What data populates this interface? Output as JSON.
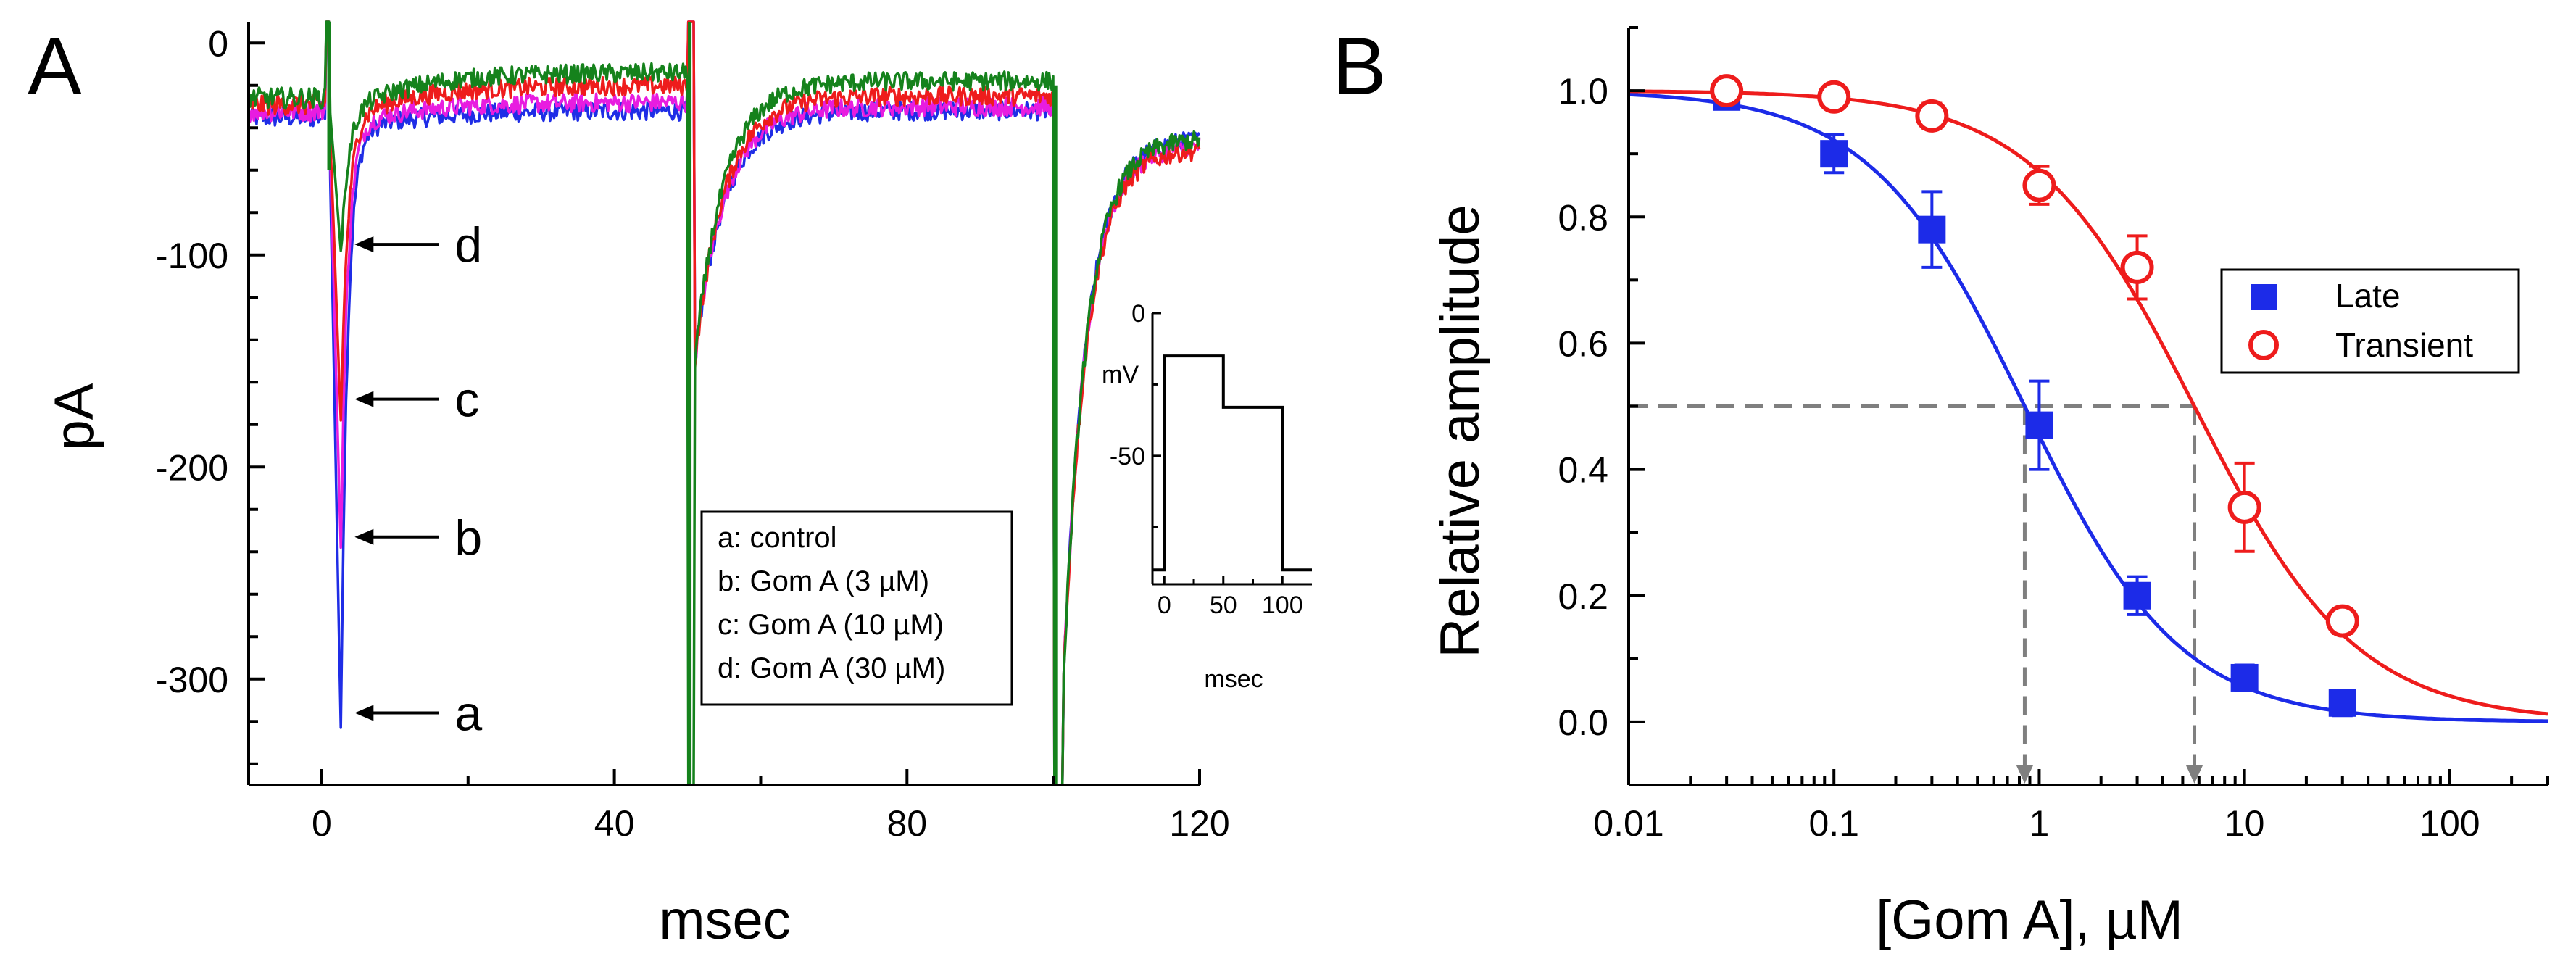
{
  "chart_data": [
    {
      "panel_label": "A",
      "type": "line",
      "title": "",
      "xlabel": "msec",
      "ylabel": "pA",
      "xlim": [
        -10,
        120
      ],
      "ylim": [
        -350,
        10
      ],
      "xticks": [
        0,
        40,
        80,
        120
      ],
      "xtick_labels": [
        "0",
        "40",
        "80",
        "120"
      ],
      "yticks": [
        0,
        -100,
        -200,
        -300
      ],
      "ytick_labels": [
        "0",
        "-100",
        "-200",
        "-300"
      ],
      "series": [
        {
          "name": "a: control",
          "color": "#1f2de6",
          "peak_pA": -323,
          "late_pA": -32,
          "tail2_pA": -32,
          "tail3_pA": -45
        },
        {
          "name": "b: Gom A (3 µM)",
          "color": "#e81ce0",
          "peak_pA": -238,
          "late_pA": -28,
          "tail2_pA": -30,
          "tail3_pA": -48
        },
        {
          "name": "c: Gom A (10 µM)",
          "color": "#ee1c1c",
          "peak_pA": -178,
          "late_pA": -20,
          "tail2_pA": -25,
          "tail3_pA": -50
        },
        {
          "name": "d: Gom A (30 µM)",
          "color": "#15821c",
          "peak_pA": -98,
          "late_pA": -14,
          "tail2_pA": -18,
          "tail3_pA": -45
        }
      ],
      "annotations": [
        {
          "text": "d",
          "target_pA": -95
        },
        {
          "text": "c",
          "target_pA": -168
        },
        {
          "text": "b",
          "target_pA": -233
        },
        {
          "text": "a",
          "target_pA": -316
        }
      ],
      "legend": {
        "location": "lower-right",
        "entries": [
          "a: control",
          "b: Gom A (3 µM)",
          "c: Gom A (10 µM)",
          "d: Gom A (30 µM)"
        ]
      },
      "inset": {
        "type": "line",
        "xlabel": "msec",
        "ylabel": "mV",
        "xlim": [
          -10,
          125
        ],
        "ylim": [
          -95,
          0
        ],
        "xticks": [
          0,
          50,
          100
        ],
        "xtick_labels": [
          "0",
          "50",
          "100"
        ],
        "yticks": [
          0,
          -50
        ],
        "ytick_labels": [
          "0",
          "-50"
        ],
        "protocol_x": [
          -10,
          0,
          0,
          50,
          50,
          100,
          100,
          125
        ],
        "protocol_mV": [
          -90,
          -90,
          -15,
          -15,
          -33,
          -33,
          -90,
          -90
        ]
      }
    },
    {
      "panel_label": "B",
      "type": "scatter",
      "title": "",
      "xlabel": "[Gom A], µM",
      "ylabel": "Relative amplitude",
      "xscale": "log",
      "xlim": [
        0.01,
        300
      ],
      "ylim": [
        -0.1,
        1.1
      ],
      "xticks": [
        0.01,
        0.1,
        1,
        10,
        100
      ],
      "xtick_labels": [
        "0.01",
        "0.1",
        "1",
        "10",
        "100"
      ],
      "yticks": [
        0.0,
        0.2,
        0.4,
        0.6,
        0.8,
        1.0
      ],
      "ytick_labels": [
        "0.0",
        "0.2",
        "0.4",
        "0.6",
        "0.8",
        "1.0"
      ],
      "series": [
        {
          "name": "Late",
          "marker": "filled-square",
          "color": "#1c2be8",
          "x": [
            0.03,
            0.1,
            0.3,
            1,
            3,
            10,
            30
          ],
          "y": [
            0.99,
            0.9,
            0.78,
            0.47,
            0.2,
            0.07,
            0.03
          ],
          "err": [
            0.01,
            0.03,
            0.06,
            0.07,
            0.03,
            0.02,
            0.02
          ],
          "fit": {
            "IC50": 0.85,
            "hill": 1.15
          }
        },
        {
          "name": "Transient",
          "marker": "open-circle",
          "color": "#ee1c1c",
          "x": [
            0.03,
            0.1,
            0.3,
            1,
            3,
            10,
            30
          ],
          "y": [
            1.0,
            0.99,
            0.96,
            0.85,
            0.72,
            0.34,
            0.16
          ],
          "err": [
            0.01,
            0.01,
            0.02,
            0.03,
            0.05,
            0.07,
            0.02
          ],
          "fit": {
            "IC50": 5.7,
            "hill": 1.1
          }
        }
      ],
      "reference_lines": [
        {
          "y": 0.5,
          "x_intercepts": [
            0.85,
            5.7
          ],
          "style": "dashed-gray-arrows"
        }
      ],
      "legend": {
        "location": "right",
        "entries": [
          "Late",
          "Transient"
        ]
      }
    }
  ]
}
